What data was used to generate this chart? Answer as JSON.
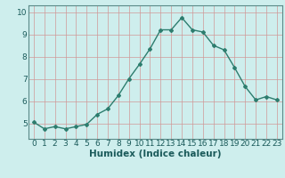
{
  "x": [
    0,
    1,
    2,
    3,
    4,
    5,
    6,
    7,
    8,
    9,
    10,
    11,
    12,
    13,
    14,
    15,
    16,
    17,
    18,
    19,
    20,
    21,
    22,
    23
  ],
  "y": [
    5.05,
    4.75,
    4.85,
    4.75,
    4.85,
    4.95,
    5.4,
    5.65,
    6.25,
    7.0,
    7.65,
    8.35,
    9.2,
    9.2,
    9.75,
    9.2,
    9.1,
    8.5,
    8.3,
    7.5,
    6.65,
    6.05,
    6.2,
    6.05
  ],
  "line_color": "#2d7d6e",
  "marker": "D",
  "marker_size": 2.0,
  "bg_color": "#ceeeed",
  "grid_color": "#d09898",
  "xlabel": "Humidex (Indice chaleur)",
  "ylim": [
    4.3,
    10.3
  ],
  "xlim": [
    -0.5,
    23.5
  ],
  "yticks": [
    5,
    6,
    7,
    8,
    9,
    10
  ],
  "xticks": [
    0,
    1,
    2,
    3,
    4,
    5,
    6,
    7,
    8,
    9,
    10,
    11,
    12,
    13,
    14,
    15,
    16,
    17,
    18,
    19,
    20,
    21,
    22,
    23
  ],
  "xlabel_fontsize": 7.5,
  "tick_fontsize": 6.5,
  "line_width": 1.0
}
